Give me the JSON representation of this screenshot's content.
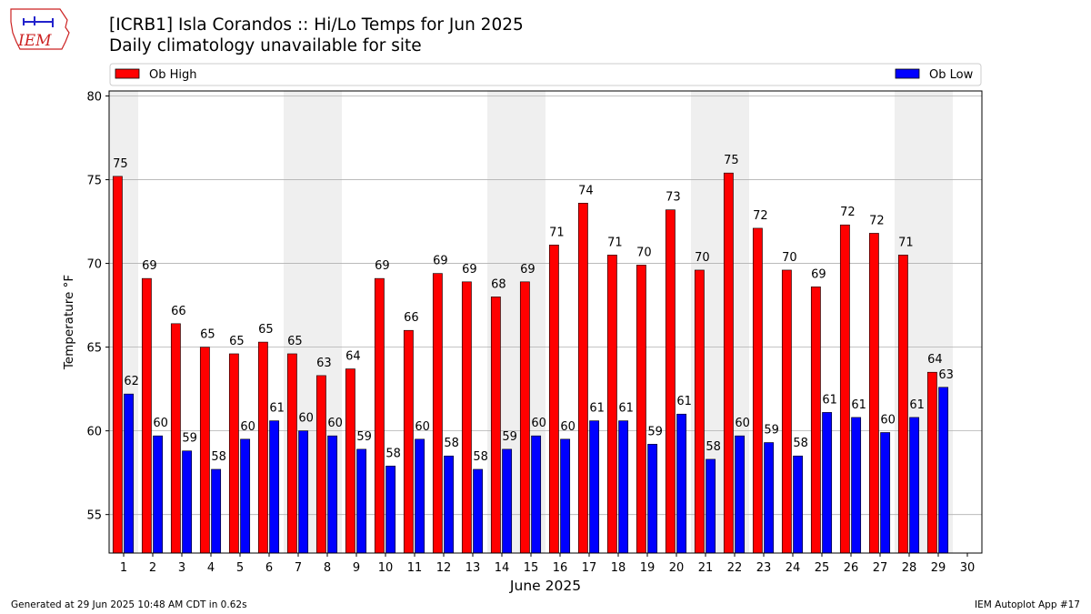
{
  "header": {
    "title_line1": "[ICRB1] Isla Corandos :: Hi/Lo Temps for Jun 2025",
    "title_line2": "Daily climatology unavailable for site",
    "logo_text": "IEM"
  },
  "footer": {
    "left": "Generated at 29 Jun 2025 10:48 AM CDT in 0.62s",
    "right": "IEM Autoplot App #17"
  },
  "colors": {
    "high": "#ff0000",
    "low": "#0000ff",
    "weekend_band": "#efefef",
    "grid": "#b0b0b0",
    "logo": "#cc2222"
  },
  "chart_data": {
    "type": "bar",
    "xlabel": "June 2025",
    "ylabel": "Temperature °F",
    "ylim": [
      52.7,
      80.3
    ],
    "xlim": [
      0.5,
      30.5
    ],
    "yticks": [
      55,
      60,
      65,
      70,
      75,
      80
    ],
    "grid": "horizontal",
    "legend_placement": "top (Ob High left, Ob Low right)",
    "categories": [
      "1",
      "2",
      "3",
      "4",
      "5",
      "6",
      "7",
      "8",
      "9",
      "10",
      "11",
      "12",
      "13",
      "14",
      "15",
      "16",
      "17",
      "18",
      "19",
      "20",
      "21",
      "22",
      "23",
      "24",
      "25",
      "26",
      "27",
      "28",
      "29",
      "30"
    ],
    "weekend_days": [
      1,
      7,
      8,
      14,
      15,
      21,
      22,
      28,
      29
    ],
    "series": [
      {
        "name": "Ob High",
        "color": "#ff0000",
        "values": [
          75.2,
          69.1,
          66.4,
          65.0,
          64.6,
          65.3,
          64.6,
          63.3,
          63.7,
          69.1,
          66.0,
          69.4,
          68.9,
          68.0,
          68.9,
          71.1,
          73.6,
          70.5,
          69.9,
          73.2,
          69.6,
          75.4,
          72.1,
          69.6,
          68.6,
          72.3,
          71.8,
          70.5,
          63.5,
          null
        ],
        "labels": [
          "75",
          "69",
          "66",
          "65",
          "65",
          "65",
          "65",
          "63",
          "64",
          "69",
          "66",
          "69",
          "69",
          "68",
          "69",
          "71",
          "74",
          "71",
          "70",
          "73",
          "70",
          "75",
          "72",
          "70",
          "69",
          "72",
          "72",
          "71",
          "64",
          ""
        ]
      },
      {
        "name": "Ob Low",
        "color": "#0000ff",
        "values": [
          62.2,
          59.7,
          58.8,
          57.7,
          59.5,
          60.6,
          60.0,
          59.7,
          58.9,
          57.9,
          59.5,
          58.5,
          57.7,
          58.9,
          59.7,
          59.5,
          60.6,
          60.6,
          59.2,
          61.0,
          58.3,
          59.7,
          59.3,
          58.5,
          61.1,
          60.8,
          59.9,
          60.8,
          62.6,
          null
        ],
        "labels": [
          "62",
          "60",
          "59",
          "58",
          "60",
          "61",
          "60",
          "60",
          "59",
          "58",
          "60",
          "58",
          "58",
          "59",
          "60",
          "60",
          "61",
          "61",
          "59",
          "61",
          "58",
          "60",
          "59",
          "58",
          "61",
          "61",
          "60",
          "61",
          "63",
          ""
        ]
      }
    ]
  }
}
